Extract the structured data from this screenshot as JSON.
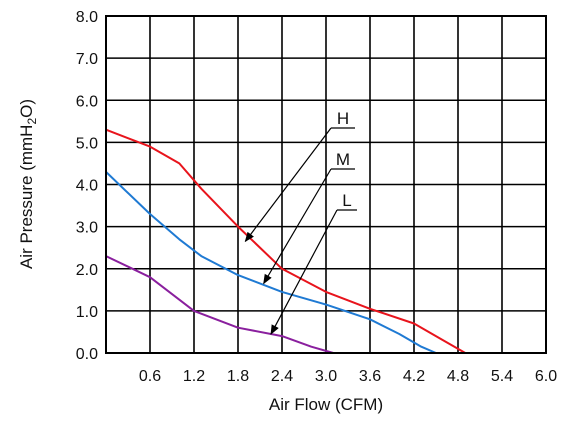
{
  "chart_data": {
    "type": "line",
    "xlabel": "Air Flow (CFM)",
    "ylabel": "Air Pressure (mmH2O)",
    "ylabel_parts": {
      "main": "Air Pressure (mmH",
      "sub": "2",
      "end": "O)"
    },
    "xlim": [
      0,
      6.0
    ],
    "ylim": [
      0,
      8.0
    ],
    "x_ticks": [
      0.6,
      1.2,
      1.8,
      2.4,
      3.0,
      3.6,
      4.2,
      4.8,
      5.4,
      6.0
    ],
    "x_tick_labels": [
      "0.6",
      "1.2",
      "1.8",
      "2.4",
      "3.0",
      "3.6",
      "4.2",
      "4.8",
      "5.4",
      "6.0"
    ],
    "y_ticks": [
      0,
      1,
      2,
      3,
      4,
      5,
      6,
      7,
      8
    ],
    "y_tick_labels": [
      "0.0",
      "1.0",
      "2.0",
      "3.0",
      "4.0",
      "5.0",
      "6.0",
      "7.0",
      "8.0"
    ],
    "grid": true,
    "series": [
      {
        "name": "H",
        "color": "#e8141c",
        "x": [
          0.0,
          0.6,
          1.0,
          1.3,
          1.8,
          2.4,
          3.0,
          3.6,
          4.2,
          4.6,
          4.9
        ],
        "y": [
          5.3,
          4.9,
          4.5,
          3.9,
          3.0,
          2.0,
          1.45,
          1.05,
          0.7,
          0.3,
          0.0
        ]
      },
      {
        "name": "M",
        "color": "#1f7ad3",
        "x": [
          0.0,
          0.6,
          1.0,
          1.3,
          1.8,
          2.4,
          3.0,
          3.6,
          4.0,
          4.3,
          4.5
        ],
        "y": [
          4.3,
          3.3,
          2.7,
          2.3,
          1.85,
          1.45,
          1.15,
          0.8,
          0.45,
          0.15,
          0.0
        ]
      },
      {
        "name": "L",
        "color": "#8a1f9e",
        "x": [
          0.0,
          0.6,
          1.2,
          1.8,
          2.4,
          2.8,
          3.1
        ],
        "y": [
          2.3,
          1.8,
          1.0,
          0.6,
          0.4,
          0.15,
          0.0
        ]
      }
    ],
    "annotations": [
      {
        "text": "H",
        "points_to_series": "H"
      },
      {
        "text": "M",
        "points_to_series": "M"
      },
      {
        "text": "L",
        "points_to_series": "L"
      }
    ]
  }
}
